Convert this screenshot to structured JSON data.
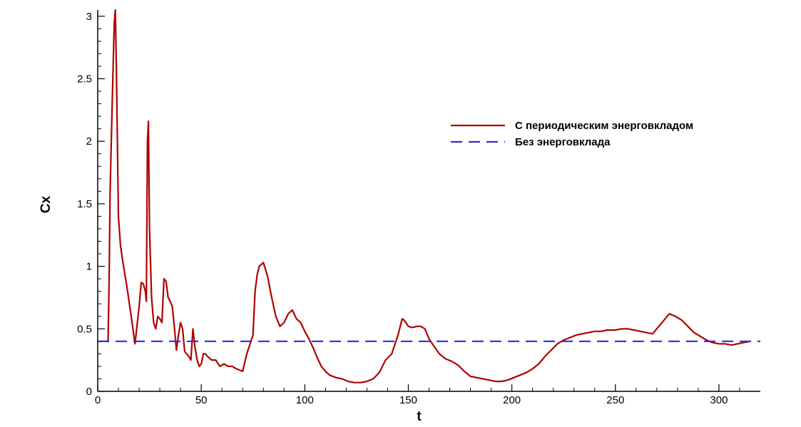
{
  "chart_data": {
    "type": "line",
    "title": "",
    "xlabel": "t",
    "ylabel": "Cx",
    "xlim": [
      0,
      320
    ],
    "ylim": [
      0,
      3.05
    ],
    "xticks": [
      0,
      50,
      100,
      150,
      200,
      250,
      300
    ],
    "yticks": [
      0,
      0.5,
      1,
      1.5,
      2,
      2.5,
      3
    ],
    "grid": false,
    "legend_position": "upper-right",
    "series": [
      {
        "name": "С периодическим энерговкладом",
        "color": "#b00000",
        "style": "solid",
        "x": [
          0,
          5,
          5.5,
          6,
          7,
          8,
          8.5,
          9,
          9.5,
          10,
          11,
          12,
          14,
          16,
          18,
          20,
          21,
          22,
          23,
          23.5,
          24,
          24.5,
          25,
          26,
          27,
          28,
          29,
          30,
          31,
          32,
          33,
          34,
          35,
          36,
          37,
          38,
          39,
          40,
          41,
          42,
          43,
          44,
          45,
          46,
          47,
          48,
          49,
          50,
          51,
          52,
          53,
          55,
          57,
          59,
          61,
          63,
          65,
          67,
          70,
          72,
          73,
          74,
          75,
          76,
          77,
          78,
          80,
          82,
          84,
          86,
          88,
          90,
          92,
          94,
          96,
          98,
          100,
          102,
          104,
          106,
          108,
          110,
          112,
          115,
          118,
          121,
          124,
          127,
          130,
          133,
          136,
          139,
          142,
          145,
          147,
          148,
          150,
          152,
          154,
          156,
          158,
          160,
          162,
          165,
          168,
          171,
          174,
          177,
          180,
          183,
          186,
          189,
          192,
          195,
          198,
          201,
          204,
          207,
          210,
          213,
          216,
          219,
          222,
          225,
          228,
          231,
          234,
          237,
          240,
          243,
          246,
          250,
          253,
          256,
          259,
          262,
          265,
          268,
          270,
          273,
          276,
          279,
          282,
          285,
          288,
          291,
          294,
          297,
          300,
          303,
          306,
          309,
          312,
          315
        ],
        "y": [
          0.4,
          0.4,
          0.9,
          1.6,
          2.3,
          2.95,
          3.05,
          2.6,
          2.0,
          1.4,
          1.17,
          1.05,
          0.85,
          0.62,
          0.38,
          0.68,
          0.87,
          0.86,
          0.8,
          0.72,
          2.0,
          2.16,
          1.3,
          0.75,
          0.55,
          0.5,
          0.6,
          0.58,
          0.55,
          0.9,
          0.88,
          0.75,
          0.72,
          0.68,
          0.52,
          0.33,
          0.45,
          0.55,
          0.5,
          0.32,
          0.3,
          0.28,
          0.25,
          0.5,
          0.35,
          0.25,
          0.2,
          0.22,
          0.3,
          0.3,
          0.28,
          0.25,
          0.25,
          0.2,
          0.22,
          0.2,
          0.2,
          0.18,
          0.16,
          0.3,
          0.35,
          0.4,
          0.45,
          0.8,
          0.93,
          1.0,
          1.03,
          0.92,
          0.75,
          0.6,
          0.52,
          0.55,
          0.62,
          0.65,
          0.58,
          0.55,
          0.48,
          0.42,
          0.35,
          0.27,
          0.2,
          0.16,
          0.13,
          0.11,
          0.1,
          0.08,
          0.07,
          0.07,
          0.08,
          0.1,
          0.15,
          0.25,
          0.3,
          0.45,
          0.58,
          0.57,
          0.52,
          0.51,
          0.52,
          0.52,
          0.5,
          0.42,
          0.37,
          0.3,
          0.26,
          0.24,
          0.21,
          0.16,
          0.12,
          0.11,
          0.1,
          0.09,
          0.08,
          0.08,
          0.09,
          0.11,
          0.13,
          0.15,
          0.18,
          0.22,
          0.28,
          0.33,
          0.38,
          0.41,
          0.43,
          0.45,
          0.46,
          0.47,
          0.48,
          0.48,
          0.49,
          0.49,
          0.5,
          0.5,
          0.49,
          0.48,
          0.47,
          0.46,
          0.5,
          0.56,
          0.62,
          0.6,
          0.57,
          0.52,
          0.47,
          0.44,
          0.41,
          0.39,
          0.38,
          0.38,
          0.37,
          0.38,
          0.39,
          0.4
        ]
      },
      {
        "name": "Без энерговклада",
        "color": "#2f2fd0",
        "style": "dashed",
        "x": [
          0,
          320
        ],
        "y": [
          0.4,
          0.4
        ]
      }
    ]
  }
}
